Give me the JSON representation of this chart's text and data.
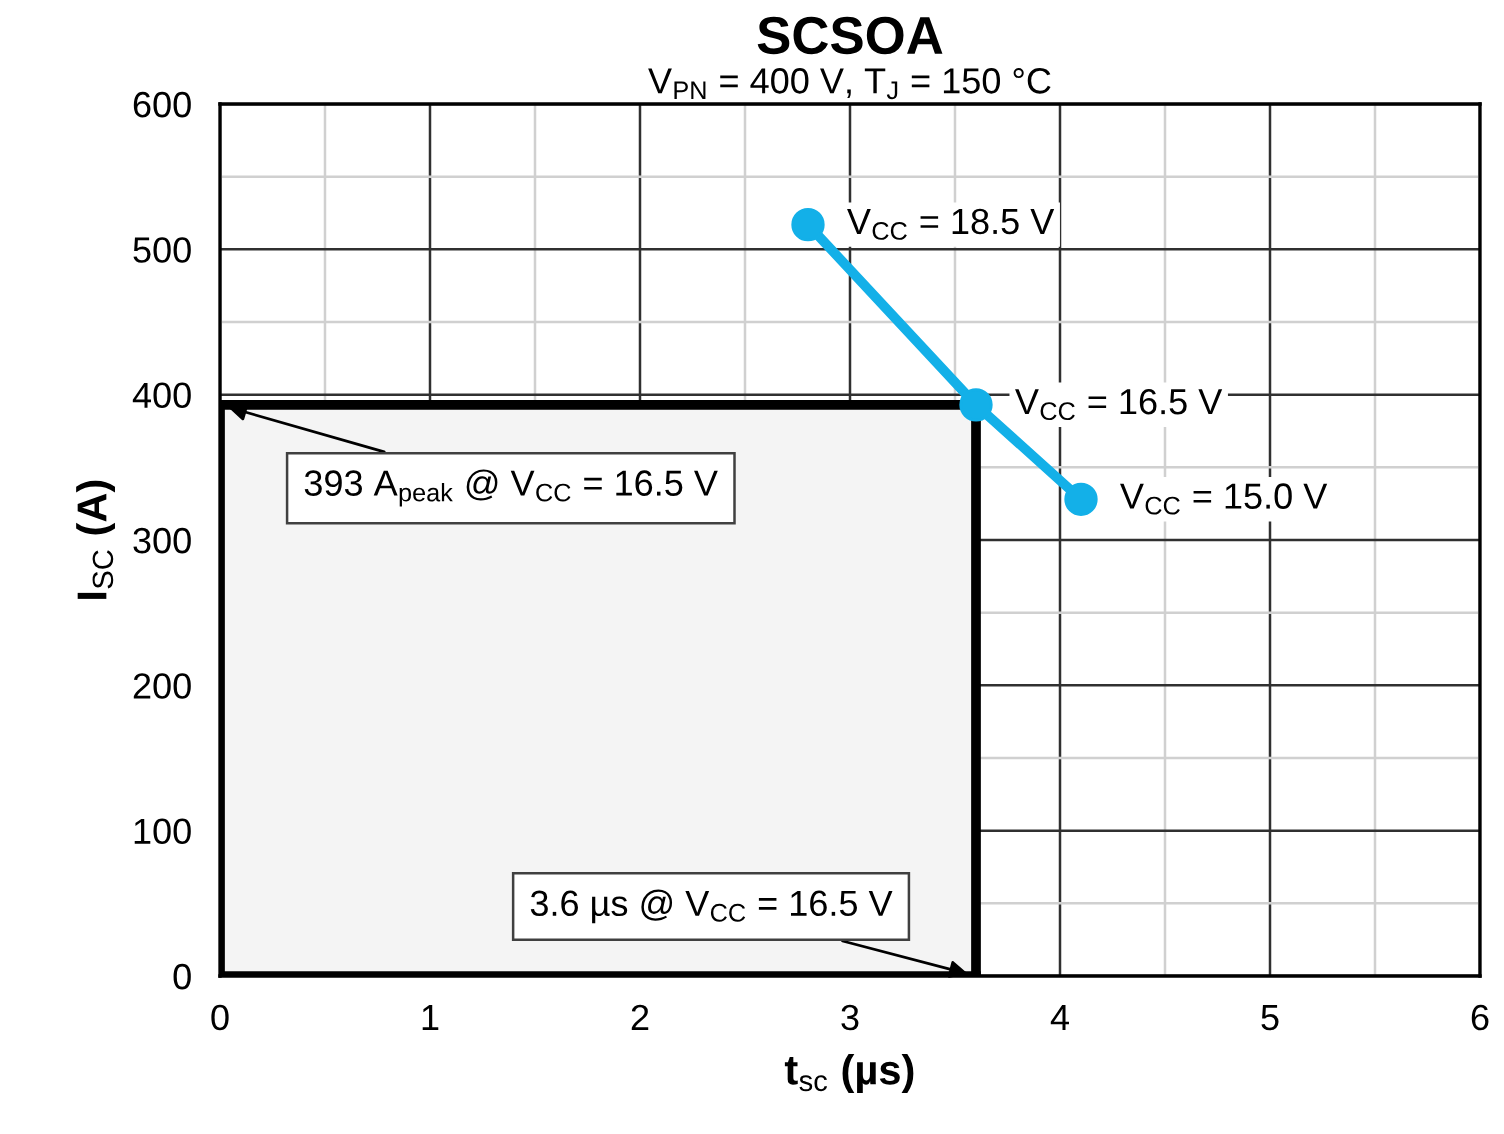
{
  "chart_data": {
    "type": "line",
    "title": "SCSOA",
    "subtitle": "V$_{PN}$ = 400 V, T$_{J}$ = 150 °C",
    "xlabel": "t$_{sc}$ (µs)",
    "ylabel": "I$_{SC}$ (A)",
    "series": [
      {
        "type": "area",
        "color": "#f4f4f4",
        "x": [
          0,
          3.6
        ],
        "values": [
          393,
          393
        ]
      },
      {
        "color": "#13b0e8",
        "x": [
          2.8,
          3.6,
          4.1
        ],
        "values": [
          517,
          393,
          328
        ],
        "marker": "circle"
      }
    ],
    "annotations": [
      {
        "text": "V$_{CC}$ = 18.5 V",
        "x": 2.8,
        "y": 517
      },
      {
        "text": "V$_{CC}$ = 16.5 V",
        "x": 3.6,
        "y": 393
      },
      {
        "text": "V$_{CC}$ = 15.0 V",
        "x": 4.1,
        "y": 328
      },
      {
        "text": "393 A$_{peak}$ @ V$_{CC}$ = 16.5 V",
        "x": 0,
        "y": 393
      },
      {
        "text": "3.6 µs @ V$_{CC}$ = 16.5 V",
        "x": 3.6,
        "y": 0
      }
    ],
    "xlim": [
      0,
      6
    ],
    "xticks": [
      0,
      1,
      2,
      3,
      4,
      5,
      6
    ],
    "ylim": [
      0,
      600
    ],
    "yticks": [
      0,
      100,
      200,
      300,
      400,
      500,
      600
    ],
    "grid": true,
    "legend": false
  }
}
